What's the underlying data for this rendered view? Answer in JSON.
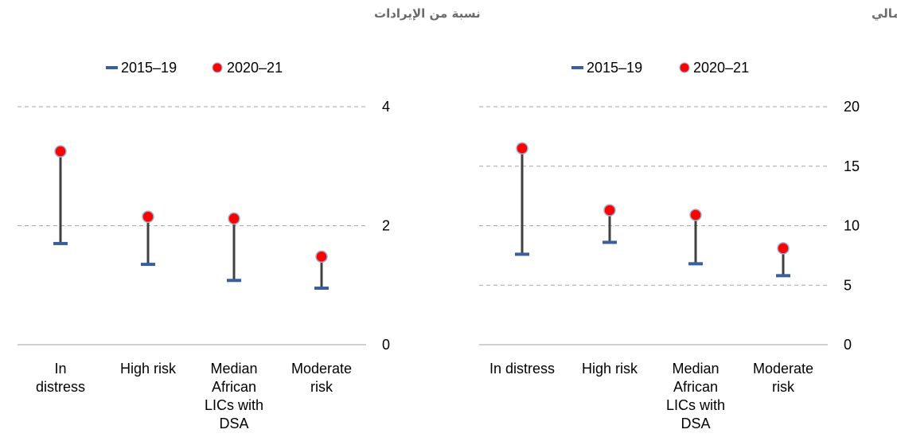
{
  "chart_data": [
    {
      "type": "dumbbell",
      "title": "نسبة من الإيرادات",
      "legend": [
        "2015–19",
        "2020–21"
      ],
      "legend_position": "top-center",
      "categories": [
        [
          "In",
          "distress"
        ],
        [
          "High risk"
        ],
        [
          "Median",
          "African",
          "LICs with",
          "DSA"
        ],
        [
          "Moderate",
          "risk"
        ]
      ],
      "series": [
        {
          "name": "2015–19",
          "values": [
            1.7,
            1.35,
            1.08,
            0.95
          ]
        },
        {
          "name": "2020–21",
          "values": [
            3.25,
            2.15,
            2.12,
            1.48
          ]
        }
      ],
      "ylim": [
        0,
        4
      ],
      "yticks": [
        "0",
        "2",
        "4"
      ],
      "grid": true,
      "axis_side": "right"
    },
    {
      "type": "dumbbell",
      "title": "نسبة من الناتج المحلي الإجمالي",
      "legend": [
        "2015–19",
        "2020–21"
      ],
      "legend_position": "top-center",
      "categories": [
        [
          "In distress"
        ],
        [
          "High risk"
        ],
        [
          "Median",
          "African",
          "LICs with",
          "DSA"
        ],
        [
          "Moderate",
          "risk"
        ]
      ],
      "series": [
        {
          "name": "2015–19",
          "values": [
            7.6,
            8.6,
            6.8,
            5.8
          ]
        },
        {
          "name": "2020–21",
          "values": [
            16.5,
            11.3,
            10.9,
            8.1
          ]
        }
      ],
      "ylim": [
        0,
        20
      ],
      "yticks": [
        "0",
        "5",
        "10",
        "15",
        "20"
      ],
      "grid": true,
      "axis_side": "right"
    }
  ],
  "colors": {
    "series_2015_19": "#3a5f9f",
    "series_2020_21": "#ff0000",
    "marker_edge": "#9bb0d4",
    "stem": "#404040",
    "grid": "#a6a6a6",
    "axis": "#bfbfbf",
    "title": "#6b6b6b"
  }
}
